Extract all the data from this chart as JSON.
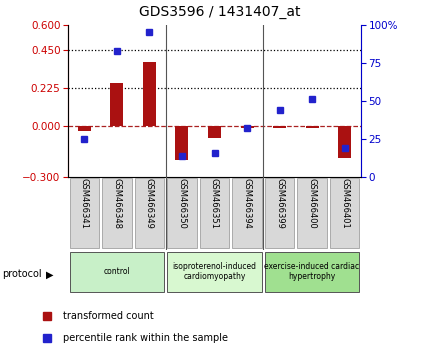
{
  "title": "GDS3596 / 1431407_at",
  "samples": [
    "GSM466341",
    "GSM466348",
    "GSM466349",
    "GSM466350",
    "GSM466351",
    "GSM466394",
    "GSM466399",
    "GSM466400",
    "GSM466401"
  ],
  "red_values": [
    -0.03,
    0.255,
    0.38,
    -0.2,
    -0.07,
    -0.01,
    -0.01,
    -0.01,
    -0.19
  ],
  "blue_pct": [
    25,
    83,
    95,
    14,
    16,
    32,
    44,
    51,
    19
  ],
  "ylim_left": [
    -0.3,
    0.6
  ],
  "ylim_right": [
    0,
    100
  ],
  "yticks_left": [
    -0.3,
    0.0,
    0.225,
    0.45,
    0.6
  ],
  "yticks_right": [
    0,
    25,
    50,
    75,
    100
  ],
  "dotted_lines": [
    0.225,
    0.45
  ],
  "groups": [
    {
      "label": "control",
      "start": 0,
      "end": 3,
      "color": "#c8f0c8"
    },
    {
      "label": "isoproterenol-induced\ncardiomyopathy",
      "start": 3,
      "end": 6,
      "color": "#d8f8d0"
    },
    {
      "label": "exercise-induced cardiac\nhypertrophy",
      "start": 6,
      "end": 9,
      "color": "#a0e090"
    }
  ],
  "bar_width": 0.4,
  "red_color": "#aa1111",
  "blue_color": "#2222cc",
  "dashed_color": "#aa2222",
  "bg_color": "#ffffff",
  "plot_bg": "#ffffff",
  "tick_color_left": "#cc0000",
  "tick_color_right": "#0000cc",
  "legend_items": [
    "transformed count",
    "percentile rank within the sample"
  ],
  "sample_box_color": "#d8d8d8",
  "sample_box_edge": "#aaaaaa"
}
